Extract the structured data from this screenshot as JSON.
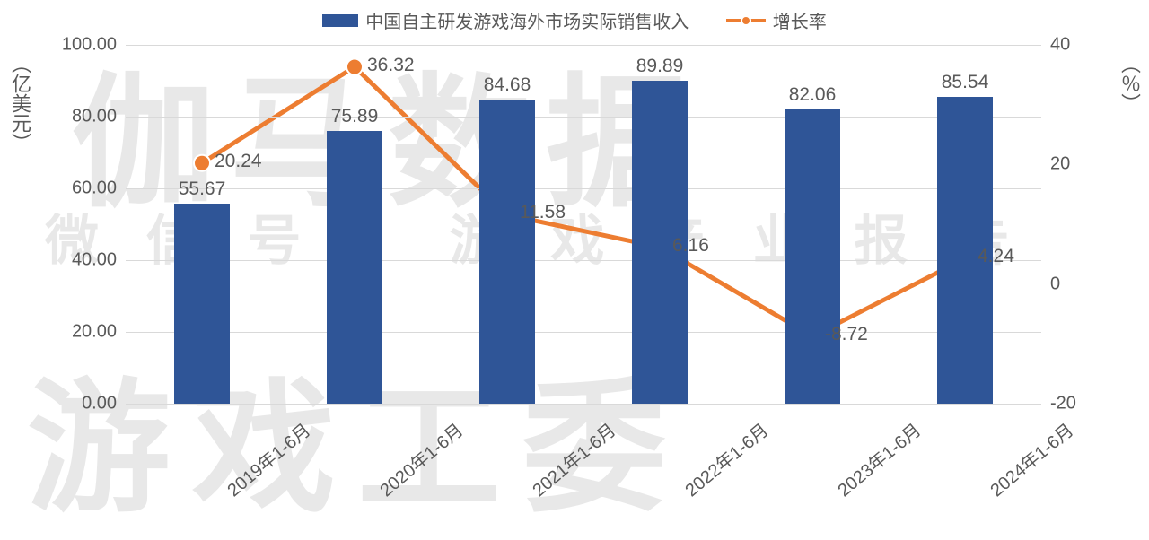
{
  "watermarks": {
    "top": "伽马数据",
    "mid": "微 信 号 ： 游 戏 产 业 报 告",
    "bottom": "游戏工委"
  },
  "legend": {
    "bar_label": "中国自主研发游戏海外市场实际销售收入",
    "line_label": "增长率"
  },
  "axes": {
    "left_label": "（亿美元）",
    "right_label": "（％）",
    "left_ticks": [
      "0.00",
      "20.00",
      "40.00",
      "60.00",
      "80.00",
      "100.00"
    ],
    "left_min": 0,
    "left_max": 100,
    "right_ticks": [
      "-20",
      "0",
      "20",
      "40"
    ],
    "right_min": -20,
    "right_max": 40
  },
  "categories": [
    "2019年1-6月",
    "2020年1-6月",
    "2021年1-6月",
    "2022年1-6月",
    "2023年1-6月",
    "2024年1-6月"
  ],
  "bars": {
    "values": [
      55.67,
      75.89,
      84.68,
      89.89,
      82.06,
      85.54
    ],
    "labels": [
      "55.67",
      "75.89",
      "84.68",
      "89.89",
      "82.06",
      "85.54"
    ],
    "color": "#2f5597",
    "width_frac": 0.36
  },
  "line": {
    "values": [
      20.24,
      36.32,
      11.58,
      6.16,
      -8.72,
      4.24
    ],
    "labels": [
      "20.24",
      "36.32",
      "11.58",
      "6.16",
      "-8.72",
      "4.24"
    ],
    "label_side": [
      "right",
      "right",
      "right",
      "right",
      "right",
      "right"
    ],
    "color": "#ed7d31",
    "marker_fill": "#ed7d31",
    "marker_stroke": "#ffffff",
    "line_width": 5,
    "marker_r": 9
  },
  "style": {
    "grid_color": "#d9d9d9",
    "text_color": "#595959",
    "background": "#ffffff",
    "font_size_tick": 20,
    "font_size_label": 21,
    "font_size_legend": 20
  }
}
